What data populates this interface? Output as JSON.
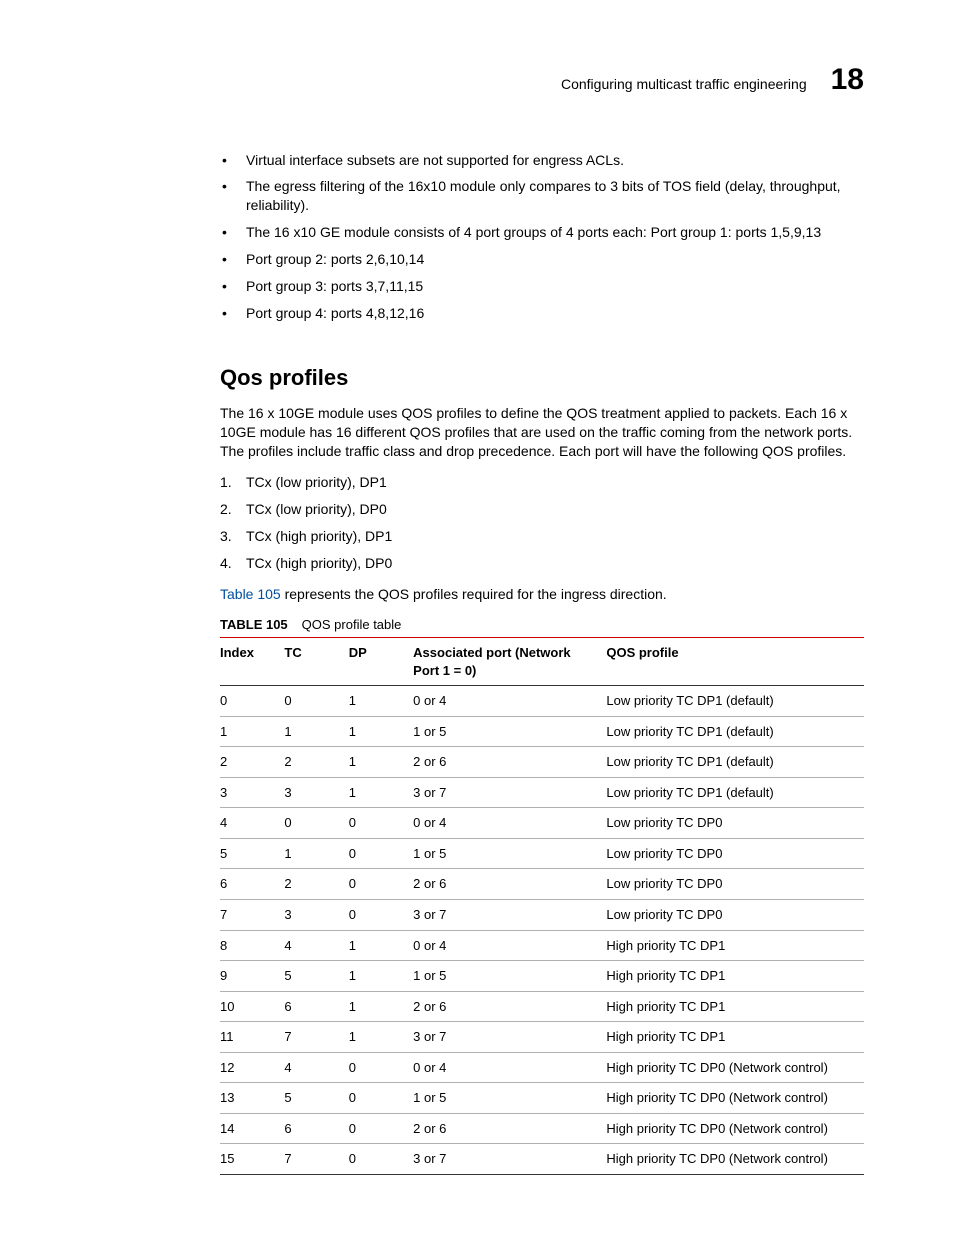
{
  "header": {
    "running_title": "Configuring multicast traffic engineering",
    "chapter_number": "18"
  },
  "bullets": [
    "Virtual interface subsets are not supported for engress ACLs.",
    "The egress filtering of the 16x10 module only compares to 3 bits of TOS field (delay, throughput, reliability).",
    "The 16 x10 GE module consists of 4 port groups of 4 ports each: Port group 1: ports 1,5,9,13",
    "Port group 2: ports 2,6,10,14",
    "Port group 3: ports 3,7,11,15",
    "Port group 4: ports 4,8,12,16"
  ],
  "section": {
    "title": "Qos profiles",
    "intro": "The 16 x 10GE module uses QOS profiles to define the QOS treatment applied to packets.  Each 16 x 10GE module has 16 different QOS profiles that are used on the traffic coming from the network ports.  The profiles include traffic class and drop precedence.  Each port will have the following QOS profiles.",
    "numbered": [
      "TCx (low priority), DP1",
      "TCx (low priority), DP0",
      "TCx (high priority), DP1",
      "TCx (high priority), DP0"
    ],
    "xref_sentence_prefix": " represents the QOS profiles required for the ingress direction.",
    "xref_label": "Table 105"
  },
  "table": {
    "caption_label": "TABLE 105",
    "caption_title": "QOS profile table",
    "columns": [
      "Index",
      "TC",
      "DP",
      "Associated port (Network Port 1 = 0)",
      "QOS profile"
    ],
    "rows": [
      [
        "0",
        "0",
        "1",
        "0 or 4",
        "Low priority TC DP1 (default)"
      ],
      [
        "1",
        "1",
        "1",
        "1 or 5",
        "Low priority TC DP1 (default)"
      ],
      [
        "2",
        "2",
        "1",
        "2 or 6",
        "Low priority TC DP1 (default)"
      ],
      [
        "3",
        "3",
        "1",
        "3 or 7",
        "Low priority TC DP1 (default)"
      ],
      [
        "4",
        "0",
        "0",
        "0 or 4",
        "Low priority TC DP0"
      ],
      [
        "5",
        "1",
        "0",
        "1 or 5",
        "Low priority TC DP0"
      ],
      [
        "6",
        "2",
        "0",
        "2 or 6",
        "Low priority TC DP0"
      ],
      [
        "7",
        "3",
        "0",
        "3 or 7",
        "Low priority TC DP0"
      ],
      [
        "8",
        "4",
        "1",
        "0 or 4",
        "High priority TC DP1"
      ],
      [
        "9",
        "5",
        "1",
        "1 or 5",
        "High priority TC DP1"
      ],
      [
        "10",
        "6",
        "1",
        "2 or 6",
        "High priority TC DP1"
      ],
      [
        "11",
        "7",
        "1",
        "3 or 7",
        "High priority TC DP1"
      ],
      [
        "12",
        "4",
        "0",
        "0 or 4",
        "High priority TC DP0 (Network control)"
      ],
      [
        "13",
        "5",
        "0",
        "1 or 5",
        "High priority TC DP0 (Network control)"
      ],
      [
        "14",
        "6",
        "0",
        "2 or 6",
        "High priority TC DP0 (Network control)"
      ],
      [
        "15",
        "7",
        "0",
        "3 or 7",
        "High priority TC DP0 (Network control)"
      ]
    ]
  },
  "colors": {
    "xref": "#0050a0",
    "table_top_rule": "#cc0000",
    "table_header_bottom": "#333333",
    "table_row_rule": "#b0b0b0"
  }
}
